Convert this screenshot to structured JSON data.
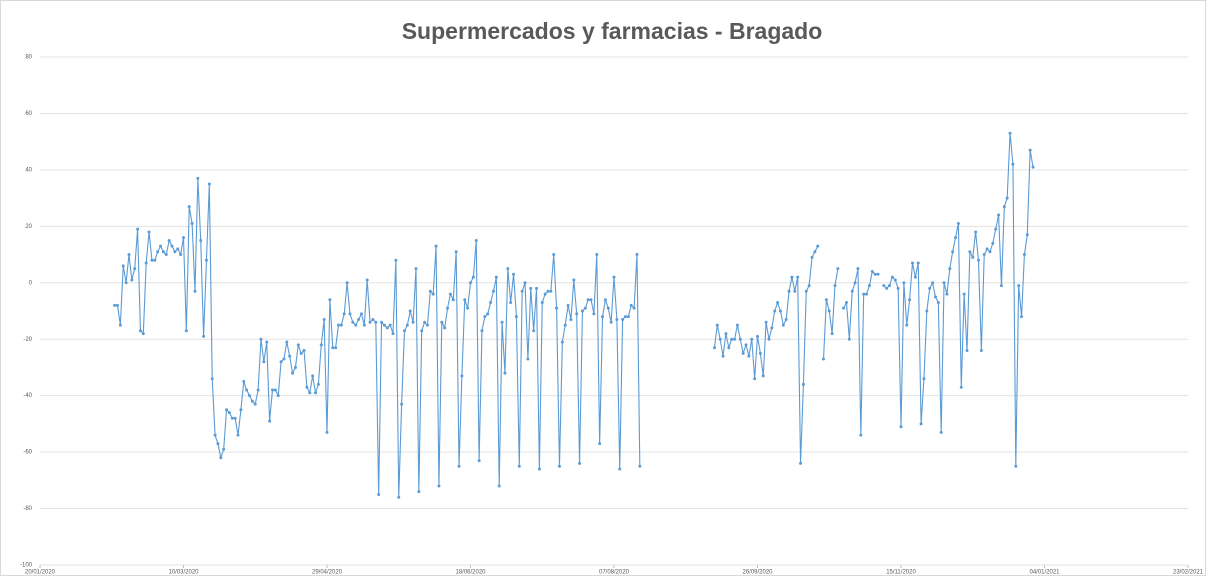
{
  "chart_data": {
    "type": "line",
    "title": "Supermercados y farmacias - Bragado",
    "x": [
      "15/02/2020",
      "16/02/2020",
      "17/02/2020",
      "18/02/2020",
      "19/02/2020",
      "20/02/2020",
      "21/02/2020",
      "22/02/2020",
      "23/02/2020",
      "24/02/2020",
      "25/02/2020",
      "26/02/2020",
      "27/02/2020",
      "28/02/2020",
      "29/02/2020",
      "01/03/2020",
      "02/03/2020",
      "03/03/2020",
      "04/03/2020",
      "05/03/2020",
      "06/03/2020",
      "07/03/2020",
      "08/03/2020",
      "09/03/2020",
      "10/03/2020",
      "11/03/2020",
      "12/03/2020",
      "13/03/2020",
      "14/03/2020",
      "15/03/2020",
      "16/03/2020",
      "17/03/2020",
      "18/03/2020",
      "19/03/2020",
      "20/03/2020",
      "21/03/2020",
      "22/03/2020",
      "23/03/2020",
      "24/03/2020",
      "25/03/2020",
      "26/03/2020",
      "27/03/2020",
      "28/03/2020",
      "29/03/2020",
      "30/03/2020",
      "31/03/2020",
      "01/04/2020",
      "02/04/2020",
      "03/04/2020",
      "04/04/2020",
      "05/04/2020",
      "06/04/2020",
      "07/04/2020",
      "08/04/2020",
      "09/04/2020",
      "10/04/2020",
      "11/04/2020",
      "12/04/2020",
      "13/04/2020",
      "14/04/2020",
      "15/04/2020",
      "16/04/2020",
      "17/04/2020",
      "18/04/2020",
      "19/04/2020",
      "20/04/2020",
      "21/04/2020",
      "22/04/2020",
      "23/04/2020",
      "24/04/2020",
      "25/04/2020",
      "26/04/2020",
      "27/04/2020",
      "28/04/2020",
      "29/04/2020",
      "30/04/2020",
      "01/05/2020",
      "02/05/2020",
      "03/05/2020",
      "04/05/2020",
      "05/05/2020",
      "06/05/2020",
      "07/05/2020",
      "08/05/2020",
      "09/05/2020",
      "10/05/2020",
      "11/05/2020",
      "12/05/2020",
      "13/05/2020",
      "14/05/2020",
      "15/05/2020",
      "16/05/2020",
      "17/05/2020",
      "18/05/2020",
      "19/05/2020",
      "20/05/2020",
      "21/05/2020",
      "22/05/2020",
      "23/05/2020",
      "24/05/2020",
      "25/05/2020",
      "26/05/2020",
      "27/05/2020",
      "28/05/2020",
      "29/05/2020",
      "30/05/2020",
      "31/05/2020",
      "01/06/2020",
      "02/06/2020",
      "03/06/2020",
      "04/06/2020",
      "05/06/2020",
      "06/06/2020",
      "07/06/2020",
      "08/06/2020",
      "09/06/2020",
      "10/06/2020",
      "11/06/2020",
      "12/06/2020",
      "13/06/2020",
      "14/06/2020",
      "15/06/2020",
      "16/06/2020",
      "17/06/2020",
      "18/06/2020",
      "19/06/2020",
      "20/06/2020",
      "21/06/2020",
      "22/06/2020",
      "23/06/2020",
      "24/06/2020",
      "25/06/2020",
      "26/06/2020",
      "27/06/2020",
      "28/06/2020",
      "29/06/2020",
      "30/06/2020",
      "01/07/2020",
      "02/07/2020",
      "03/07/2020",
      "04/07/2020",
      "05/07/2020",
      "06/07/2020",
      "07/07/2020",
      "08/07/2020",
      "09/07/2020",
      "10/07/2020",
      "11/07/2020",
      "12/07/2020",
      "13/07/2020",
      "14/07/2020",
      "15/07/2020",
      "16/07/2020",
      "17/07/2020",
      "18/07/2020",
      "19/07/2020",
      "20/07/2020",
      "21/07/2020",
      "22/07/2020",
      "23/07/2020",
      "24/07/2020",
      "25/07/2020",
      "26/07/2020",
      "27/07/2020",
      "28/07/2020",
      "29/07/2020",
      "30/07/2020",
      "31/07/2020",
      "01/08/2020",
      "02/08/2020",
      "03/08/2020",
      "04/08/2020",
      "05/08/2020",
      "06/08/2020",
      "07/08/2020",
      "08/08/2020",
      "09/08/2020",
      "10/08/2020",
      "11/08/2020",
      "12/08/2020",
      "13/08/2020",
      "14/08/2020",
      "15/08/2020",
      "16/08/2020",
      "01/09/2020",
      "11/09/2020",
      "12/09/2020",
      "13/09/2020",
      "14/09/2020",
      "15/09/2020",
      "16/09/2020",
      "17/09/2020",
      "18/09/2020",
      "19/09/2020",
      "20/09/2020",
      "21/09/2020",
      "22/09/2020",
      "23/09/2020",
      "24/09/2020",
      "25/09/2020",
      "26/09/2020",
      "27/09/2020",
      "28/09/2020",
      "29/09/2020",
      "30/09/2020",
      "01/10/2020",
      "02/10/2020",
      "03/10/2020",
      "04/10/2020",
      "05/10/2020",
      "06/10/2020",
      "07/10/2020",
      "08/10/2020",
      "09/10/2020",
      "10/10/2020",
      "11/10/2020",
      "12/10/2020",
      "13/10/2020",
      "14/10/2020",
      "15/10/2020",
      "16/10/2020",
      "17/10/2020",
      "18/10/2020",
      "19/10/2020",
      "20/10/2020",
      "21/10/2020",
      "22/10/2020",
      "23/10/2020",
      "24/10/2020",
      "25/10/2020",
      "26/10/2020",
      "27/10/2020",
      "28/10/2020",
      "29/10/2020",
      "30/10/2020",
      "31/10/2020",
      "01/11/2020",
      "02/11/2020",
      "03/11/2020",
      "04/11/2020",
      "05/11/2020",
      "06/11/2020",
      "07/11/2020",
      "08/11/2020",
      "09/11/2020",
      "10/11/2020",
      "11/11/2020",
      "12/11/2020",
      "13/11/2020",
      "14/11/2020",
      "15/11/2020",
      "16/11/2020",
      "17/11/2020",
      "18/11/2020",
      "19/11/2020",
      "20/11/2020",
      "21/11/2020",
      "22/11/2020",
      "23/11/2020",
      "24/11/2020",
      "25/11/2020",
      "26/11/2020",
      "27/11/2020",
      "28/11/2020",
      "29/11/2020",
      "30/11/2020",
      "01/12/2020",
      "02/12/2020",
      "03/12/2020",
      "04/12/2020",
      "05/12/2020",
      "06/12/2020",
      "07/12/2020",
      "08/12/2020",
      "09/12/2020",
      "10/12/2020",
      "11/12/2020",
      "12/12/2020",
      "13/12/2020",
      "14/12/2020",
      "15/12/2020",
      "16/12/2020",
      "17/12/2020",
      "18/12/2020",
      "19/12/2020",
      "20/12/2020",
      "21/12/2020",
      "22/12/2020",
      "23/12/2020",
      "24/12/2020",
      "25/12/2020",
      "26/12/2020",
      "27/12/2020",
      "28/12/2020",
      "29/12/2020",
      "30/12/2020",
      "31/12/2020"
    ],
    "series": [
      {
        "name": "Supermercados y farmacias",
        "color": "#5b9bd5",
        "values": [
          -8,
          -8,
          -15,
          6,
          0,
          10,
          1,
          5,
          19,
          -17,
          -18,
          7,
          18,
          8,
          8,
          11,
          13,
          11,
          10,
          15,
          13,
          11,
          12,
          10,
          16,
          -17,
          27,
          21,
          -3,
          37,
          15,
          -19,
          8,
          35,
          -34,
          -54,
          -57,
          -62,
          -59,
          -45,
          -46,
          -48,
          -48,
          -54,
          -45,
          -35,
          -38,
          -40,
          -42,
          -43,
          -38,
          -20,
          -28,
          -21,
          -49,
          -38,
          -38,
          -40,
          -28,
          -27,
          -21,
          -26,
          -32,
          -30,
          -22,
          -25,
          -24,
          -37,
          -39,
          -33,
          -39,
          -36,
          -22,
          -13,
          -53,
          -6,
          -23,
          -23,
          -15,
          -15,
          -11,
          0,
          -11,
          -14,
          -15,
          -13,
          -11,
          -15,
          1,
          -14,
          -13,
          -14,
          -75,
          -14,
          -15,
          -16,
          -15,
          -18,
          8,
          -76,
          -43,
          -17,
          -15,
          -10,
          -14,
          5,
          -74,
          -17,
          -14,
          -15,
          -3,
          -4,
          13,
          -72,
          -14,
          -16,
          -9,
          -4,
          -6,
          11,
          -65,
          -33,
          -6,
          -9,
          0,
          2,
          15,
          -63,
          -17,
          -12,
          -11,
          -7,
          -3,
          2,
          -72,
          -14,
          -32,
          5,
          -7,
          3,
          -12,
          -65,
          -3,
          0,
          -27,
          -2,
          -17,
          -2,
          -66,
          -7,
          -4,
          -3,
          -3,
          10,
          -9,
          -65,
          -21,
          -15,
          -8,
          -13,
          1,
          -11,
          -64,
          -10,
          -9,
          -6,
          -6,
          -11,
          10,
          -57,
          -12,
          -6,
          -9,
          -14,
          2,
          -13,
          -66,
          -13,
          -12,
          -12,
          -8,
          -9,
          10,
          -65,
          null,
          -23,
          -15,
          -20,
          -26,
          -18,
          -23,
          -20,
          -20,
          -15,
          -20,
          -25,
          -22,
          -26,
          -20,
          -34,
          -19,
          -25,
          -33,
          -14,
          -20,
          -16,
          -10,
          -7,
          -10,
          -15,
          -13,
          -3,
          2,
          -3,
          2,
          -64,
          -36,
          -3,
          -1,
          9,
          11,
          13,
          null,
          -27,
          -6,
          -10,
          -18,
          -1,
          5,
          null,
          -9,
          -7,
          -20,
          -3,
          0,
          5,
          -54,
          -4,
          -4,
          -1,
          4,
          3,
          3,
          null,
          -1,
          -2,
          -1,
          2,
          1,
          -2,
          -51,
          0,
          -15,
          -6,
          7,
          2,
          7,
          -50,
          -34,
          -10,
          -2,
          0,
          -5,
          -7,
          -53,
          0,
          -4,
          5,
          11,
          16,
          21,
          -37,
          -4,
          -24,
          11,
          9,
          18,
          8,
          -24,
          10,
          12,
          11,
          14,
          19,
          24,
          -1,
          27,
          30,
          53,
          42,
          -65,
          -1,
          -12,
          10,
          17,
          47,
          41
        ]
      }
    ],
    "xlim": [
      "20/01/2020",
      "23/02/2021"
    ],
    "xticks": [
      "20/01/2020",
      "10/03/2020",
      "29/04/2020",
      "18/06/2020",
      "07/08/2020",
      "26/09/2020",
      "15/11/2020",
      "04/01/2021",
      "23/02/2021"
    ],
    "ylim": [
      -100,
      80
    ],
    "yticks": [
      -100,
      -80,
      -60,
      -40,
      -20,
      0,
      20,
      40,
      60,
      80
    ],
    "grid": true
  }
}
